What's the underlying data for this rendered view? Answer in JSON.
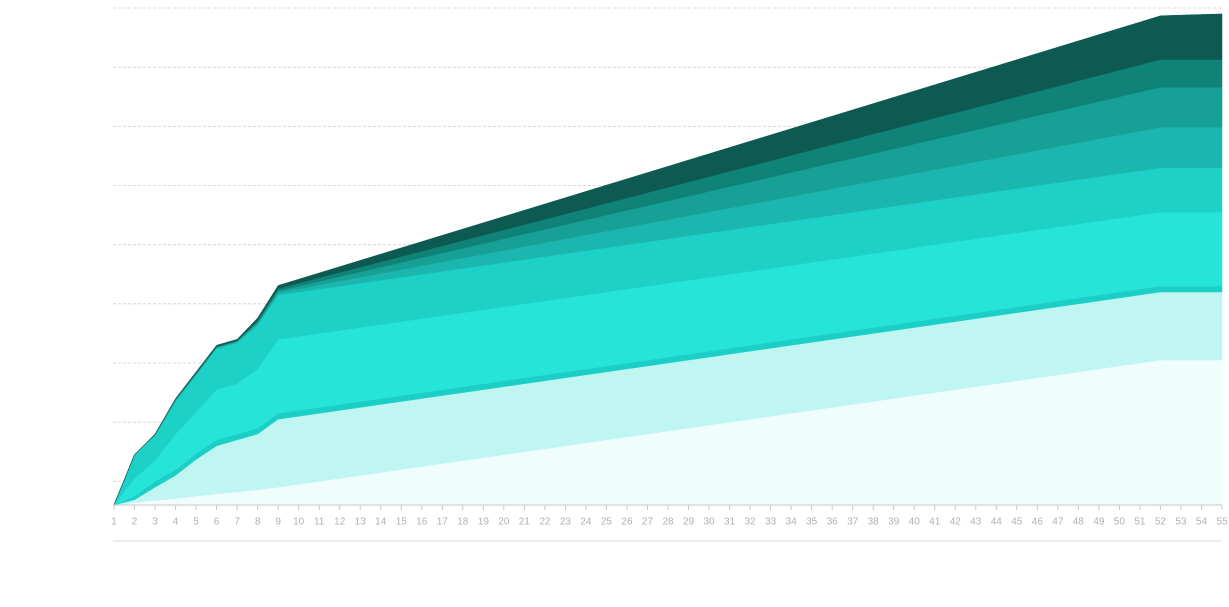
{
  "chart_data": {
    "type": "stacked-area",
    "categories": [
      "1",
      "2",
      "3",
      "4",
      "5",
      "6",
      "7",
      "8",
      "9",
      "10",
      "11",
      "12",
      "13",
      "14",
      "15",
      "16",
      "17",
      "18",
      "19",
      "20",
      "21",
      "22",
      "23",
      "24",
      "25",
      "26",
      "27",
      "28",
      "29",
      "30",
      "31",
      "32",
      "33",
      "34",
      "35",
      "36",
      "37",
      "38",
      "39",
      "40",
      "41",
      "42",
      "43",
      "44",
      "45",
      "46",
      "47",
      "48",
      "49",
      "50",
      "51",
      "52",
      "53",
      "54",
      "55"
    ],
    "ylim": [
      0,
      84
    ],
    "yticks": [
      4,
      14,
      24,
      34,
      44,
      54,
      64,
      74,
      84
    ],
    "grid": true,
    "series": [
      {
        "color": "#f0fdfd",
        "values": [
          0,
          0.4,
          0.8,
          1.1,
          1.5,
          1.9,
          2.2,
          2.6,
          3,
          3.5,
          4,
          4.5,
          5,
          5.5,
          6,
          6.5,
          7,
          7.5,
          8,
          8.5,
          9,
          9.5,
          10,
          10.5,
          11,
          11.5,
          12,
          12.5,
          13,
          13.5,
          14,
          14.5,
          15,
          15.5,
          16,
          16.5,
          17,
          17.5,
          18,
          18.5,
          19,
          19.5,
          20,
          20.5,
          21,
          21.5,
          22,
          22.5,
          23,
          23.5,
          24,
          24.5,
          24.5,
          24.5,
          24.5
        ]
      },
      {
        "color": "#bff6f2",
        "values": [
          0,
          0.5,
          2.2,
          3.9,
          6.2,
          8.1,
          8.8,
          9.4,
          11.5,
          11.5,
          11.5,
          11.5,
          11.5,
          11.5,
          11.5,
          11.5,
          11.5,
          11.5,
          11.5,
          11.5,
          11.5,
          11.5,
          11.5,
          11.5,
          11.5,
          11.5,
          11.5,
          11.5,
          11.5,
          11.5,
          11.5,
          11.5,
          11.5,
          11.5,
          11.5,
          11.5,
          11.5,
          11.5,
          11.5,
          11.5,
          11.5,
          11.5,
          11.5,
          11.5,
          11.5,
          11.5,
          11.5,
          11.5,
          11.5,
          11.5,
          11.5,
          11.5,
          11.5,
          11.5,
          11.5
        ]
      },
      {
        "color": "#1ccfc6",
        "values": [
          0,
          0.6,
          1,
          1,
          1,
          1,
          1,
          1,
          1,
          1,
          1,
          1,
          1,
          1,
          1,
          1,
          1,
          1,
          1,
          1,
          1,
          1,
          1,
          1,
          1,
          1,
          1,
          1,
          1,
          1,
          1,
          1,
          1,
          1,
          1,
          1,
          1,
          1,
          1,
          1,
          1,
          1,
          1,
          1,
          1,
          1,
          1,
          1,
          1,
          1,
          1,
          1,
          1,
          1,
          1
        ]
      },
      {
        "color": "#27e4da",
        "values": [
          0,
          3,
          3.5,
          6,
          7,
          8.5,
          8.5,
          10,
          12.5,
          12.5,
          12.5,
          12.5,
          12.5,
          12.5,
          12.5,
          12.5,
          12.5,
          12.5,
          12.5,
          12.5,
          12.5,
          12.5,
          12.5,
          12.5,
          12.5,
          12.5,
          12.5,
          12.5,
          12.5,
          12.5,
          12.5,
          12.5,
          12.5,
          12.5,
          12.5,
          12.5,
          12.5,
          12.5,
          12.5,
          12.5,
          12.5,
          12.5,
          12.5,
          12.5,
          12.5,
          12.5,
          12.5,
          12.5,
          12.5,
          12.5,
          12.5,
          12.5,
          12.5,
          12.5,
          12.5
        ]
      },
      {
        "color": "#1dd1c7",
        "values": [
          0,
          4,
          4.3,
          5.5,
          6.2,
          6.9,
          6.9,
          7.4,
          7.5,
          7.5,
          7.5,
          7.5,
          7.5,
          7.5,
          7.5,
          7.5,
          7.5,
          7.5,
          7.5,
          7.5,
          7.5,
          7.5,
          7.5,
          7.5,
          7.5,
          7.5,
          7.5,
          7.5,
          7.5,
          7.5,
          7.5,
          7.5,
          7.5,
          7.5,
          7.5,
          7.5,
          7.5,
          7.5,
          7.5,
          7.5,
          7.5,
          7.5,
          7.5,
          7.5,
          7.5,
          7.5,
          7.5,
          7.5,
          7.5,
          7.5,
          7.5,
          7.5,
          7.5,
          7.5,
          7.5
        ]
      },
      {
        "color": "#1bb6ad",
        "values": [
          0,
          0,
          0.1,
          0.2,
          0.2,
          0.2,
          0.2,
          0.3,
          0.4,
          0.55,
          0.7,
          0.85,
          1,
          1.15,
          1.3,
          1.45,
          1.6,
          1.75,
          1.9,
          2.05,
          2.2,
          2.35,
          2.5,
          2.65,
          2.8,
          2.95,
          3.1,
          3.25,
          3.4,
          3.55,
          3.7,
          3.85,
          4,
          4.15,
          4.3,
          4.45,
          4.6,
          4.75,
          4.9,
          5.05,
          5.2,
          5.35,
          5.5,
          5.65,
          5.8,
          5.95,
          6.1,
          6.25,
          6.4,
          6.55,
          6.7,
          6.85,
          6.85,
          6.85,
          6.85
        ]
      },
      {
        "color": "#16a096",
        "values": [
          0,
          0,
          0,
          0.1,
          0.1,
          0.1,
          0.1,
          0.2,
          0.3,
          0.45,
          0.6,
          0.75,
          0.9,
          1.05,
          1.2,
          1.35,
          1.5,
          1.65,
          1.8,
          1.95,
          2.1,
          2.25,
          2.4,
          2.55,
          2.7,
          2.85,
          3,
          3.15,
          3.3,
          3.45,
          3.6,
          3.75,
          3.9,
          4.05,
          4.2,
          4.35,
          4.5,
          4.65,
          4.8,
          4.95,
          5.1,
          5.25,
          5.4,
          5.55,
          5.7,
          5.85,
          6,
          6.15,
          6.3,
          6.45,
          6.6,
          6.75,
          6.75,
          6.75,
          6.75
        ]
      },
      {
        "color": "#108378",
        "values": [
          0,
          0,
          0,
          0.1,
          0.1,
          0.1,
          0.1,
          0.3,
          0.4,
          0.5,
          0.6,
          0.7,
          0.8,
          0.9,
          1,
          1.1,
          1.2,
          1.3,
          1.4,
          1.5,
          1.6,
          1.7,
          1.8,
          1.9,
          2,
          2.1,
          2.2,
          2.3,
          2.4,
          2.5,
          2.6,
          2.7,
          2.8,
          2.9,
          3,
          3.1,
          3.2,
          3.3,
          3.4,
          3.5,
          3.6,
          3.7,
          3.8,
          3.9,
          4,
          4.1,
          4.2,
          4.3,
          4.4,
          4.5,
          4.6,
          4.7,
          4.7,
          4.7,
          4.7
        ]
      },
      {
        "color": "#0c5a52",
        "values": [
          0,
          0,
          0.1,
          0.1,
          0.2,
          0.2,
          0.2,
          0.4,
          0.5,
          0.66,
          0.82,
          0.98,
          1.14,
          1.3,
          1.46,
          1.62,
          1.78,
          1.94,
          2.1,
          2.26,
          2.42,
          2.58,
          2.74,
          2.9,
          3.06,
          3.22,
          3.38,
          3.54,
          3.7,
          3.86,
          4.02,
          4.18,
          4.34,
          4.5,
          4.66,
          4.82,
          4.98,
          5.14,
          5.3,
          5.46,
          5.62,
          5.78,
          5.94,
          6.1,
          6.26,
          6.42,
          6.58,
          6.74,
          6.9,
          7.06,
          7.22,
          7.38,
          7.5,
          7.6,
          7.7
        ]
      }
    ]
  }
}
